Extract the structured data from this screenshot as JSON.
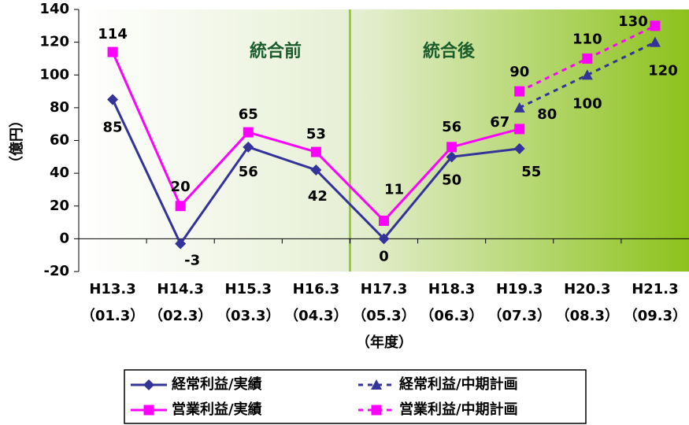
{
  "chart_data": {
    "type": "line",
    "y_label": "（億円）",
    "x_label": "（年度）",
    "annotations": [
      "統合前",
      "統合後"
    ],
    "categories": [
      "H13.3",
      "H14.3",
      "H15.3",
      "H16.3",
      "H17.3",
      "H18.3",
      "H19.3",
      "H20.3",
      "H21.3"
    ],
    "categories_sub": [
      "（01.3）",
      "（02.3）",
      "（03.3）",
      "（04.3）",
      "（05.3）",
      "（06.3）",
      "（07.3）",
      "（08.3）",
      "（09.3）"
    ],
    "ylim": [
      -20,
      140
    ],
    "yticks": [
      -20,
      0,
      20,
      40,
      60,
      80,
      100,
      120,
      140
    ],
    "series": [
      {
        "name": "経常利益/実績",
        "color": "#333399",
        "dashed": false,
        "marker": "diamond",
        "values": [
          85,
          -3,
          56,
          42,
          0,
          50,
          55,
          null,
          null
        ]
      },
      {
        "name": "営業利益/実績",
        "color": "#ff00ff",
        "dashed": false,
        "marker": "square",
        "values": [
          114,
          20,
          65,
          53,
          11,
          56,
          67,
          null,
          null
        ]
      },
      {
        "name": "経常利益/中期計画",
        "color": "#333399",
        "dashed": true,
        "marker": "triangle",
        "values": [
          null,
          null,
          null,
          null,
          null,
          null,
          80,
          100,
          120
        ]
      },
      {
        "name": "営業利益/中期計画",
        "color": "#ff00ff",
        "dashed": true,
        "marker": "square",
        "values": [
          null,
          null,
          null,
          null,
          null,
          null,
          90,
          110,
          130
        ]
      }
    ]
  }
}
